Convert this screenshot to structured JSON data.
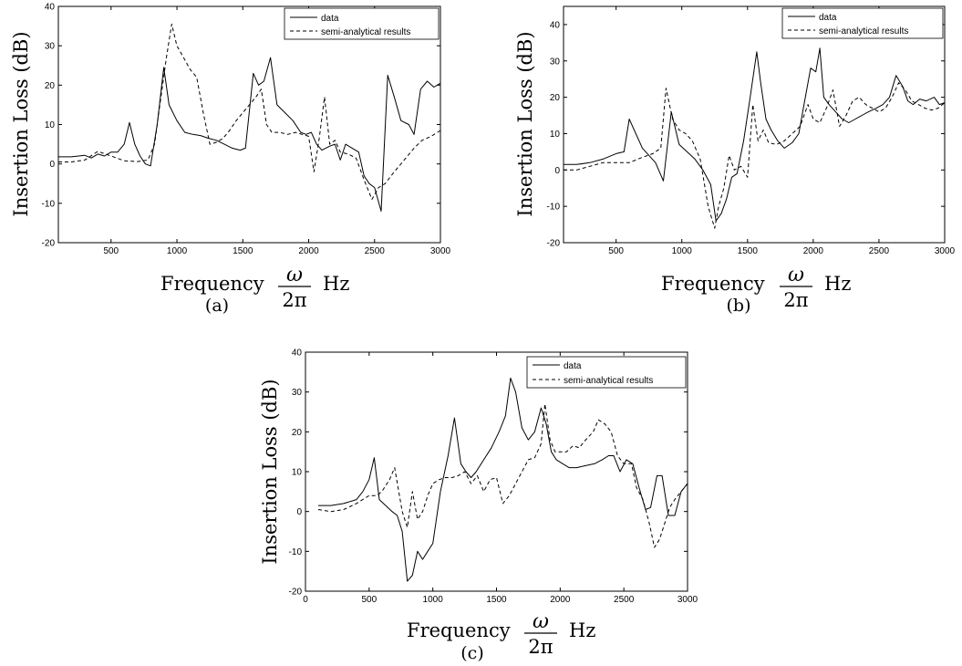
{
  "chart_data": [
    {
      "type": "line",
      "panel_label": "(a)",
      "ylabel": "Insertion Loss (dB)",
      "xlabel": {
        "prefix": "Frequency",
        "numerator": "ω",
        "denominator": "2π",
        "suffix": "Hz"
      },
      "xlim": [
        100,
        3000
      ],
      "ylim": [
        -20,
        40
      ],
      "xticks": [
        500,
        1000,
        1500,
        2000,
        2500,
        3000
      ],
      "yticks": [
        -20,
        -10,
        0,
        10,
        20,
        30,
        40
      ],
      "grid": false,
      "legend": "top-right",
      "series": [
        {
          "name": "data",
          "style": "solid",
          "x": [
            100,
            200,
            300,
            350,
            400,
            450,
            500,
            550,
            600,
            640,
            680,
            720,
            760,
            800,
            850,
            900,
            940,
            1000,
            1060,
            1120,
            1180,
            1240,
            1300,
            1360,
            1420,
            1480,
            1520,
            1580,
            1620,
            1660,
            1710,
            1760,
            1820,
            1880,
            1940,
            1980,
            2020,
            2060,
            2100,
            2160,
            2200,
            2240,
            2280,
            2330,
            2380,
            2420,
            2460,
            2500,
            2550,
            2600,
            2650,
            2700,
            2760,
            2800,
            2850,
            2900,
            2950,
            3000
          ],
          "y": [
            1.8,
            1.8,
            2.2,
            1.5,
            2.5,
            2,
            3,
            3,
            5,
            10.5,
            5,
            2,
            0,
            -0.5,
            10,
            24.5,
            15,
            11,
            8,
            7.5,
            7.2,
            6.5,
            6,
            5,
            4,
            3.5,
            4,
            23,
            20,
            21,
            27,
            15,
            13,
            11,
            8,
            7.5,
            8,
            5,
            3.5,
            4.5,
            5,
            1,
            5,
            4,
            3,
            -3,
            -5,
            -6,
            -12,
            22.5,
            17,
            11,
            10,
            7.5,
            19,
            21,
            19.5,
            20.5
          ]
        },
        {
          "name": "semi-analytical results",
          "style": "dashed",
          "x": [
            100,
            200,
            300,
            400,
            500,
            600,
            700,
            780,
            830,
            870,
            920,
            960,
            1000,
            1050,
            1100,
            1150,
            1200,
            1250,
            1300,
            1350,
            1400,
            1450,
            1500,
            1550,
            1600,
            1640,
            1680,
            1720,
            1780,
            1840,
            1900,
            1950,
            2000,
            2040,
            2080,
            2120,
            2160,
            2200,
            2240,
            2300,
            2360,
            2420,
            2480,
            2530,
            2580,
            2650,
            2700,
            2750,
            2800,
            2860,
            2930,
            3000
          ],
          "y": [
            0.5,
            0.5,
            1,
            3.2,
            2,
            0.8,
            0.6,
            1,
            5,
            15,
            27,
            35.5,
            30,
            27,
            24,
            22,
            13,
            5,
            5.5,
            6.5,
            8.5,
            11,
            13,
            15,
            17,
            19,
            10,
            8,
            8,
            7.5,
            8,
            7.5,
            7,
            -2,
            6.5,
            17,
            5,
            6,
            3,
            2.5,
            1.5,
            -4,
            -9,
            -6,
            -5,
            -2,
            0,
            2,
            4,
            6,
            7,
            8.5
          ]
        }
      ]
    },
    {
      "type": "line",
      "panel_label": "(b)",
      "ylabel": "Insertion Loss (dB)",
      "xlabel": {
        "prefix": "Frequency",
        "numerator": "ω",
        "denominator": "2π",
        "suffix": "Hz"
      },
      "xlim": [
        100,
        3000
      ],
      "ylim": [
        -20,
        45
      ],
      "xticks": [
        500,
        1000,
        1500,
        2000,
        2500,
        3000
      ],
      "yticks": [
        -20,
        -10,
        0,
        10,
        20,
        30,
        40
      ],
      "grid": false,
      "legend": "top-right",
      "series": [
        {
          "name": "data",
          "style": "solid",
          "x": [
            100,
            200,
            300,
            400,
            500,
            560,
            600,
            700,
            800,
            860,
            920,
            980,
            1040,
            1100,
            1160,
            1220,
            1260,
            1300,
            1340,
            1380,
            1420,
            1470,
            1520,
            1570,
            1600,
            1640,
            1680,
            1730,
            1780,
            1840,
            1890,
            1940,
            1980,
            2020,
            2050,
            2080,
            2120,
            2170,
            2220,
            2270,
            2320,
            2370,
            2420,
            2480,
            2530,
            2580,
            2630,
            2680,
            2720,
            2760,
            2810,
            2860,
            2920,
            2960,
            3000
          ],
          "y": [
            1.5,
            1.5,
            2,
            3,
            4.5,
            5,
            14,
            6,
            2,
            -3,
            16,
            7,
            5,
            3,
            0,
            -4,
            -14,
            -12,
            -8,
            -2,
            -1,
            8,
            20,
            32.5,
            24,
            14,
            11,
            8,
            6,
            7.5,
            10,
            20,
            28,
            27,
            33.5,
            20,
            18,
            16,
            14,
            13,
            14,
            15,
            16,
            17,
            18,
            20,
            26,
            23,
            19,
            18,
            19.5,
            19,
            20,
            18,
            18.5
          ]
        },
        {
          "name": "semi-analytical results",
          "style": "dashed",
          "x": [
            100,
            200,
            300,
            400,
            500,
            600,
            700,
            780,
            840,
            880,
            930,
            980,
            1030,
            1080,
            1140,
            1200,
            1250,
            1280,
            1320,
            1360,
            1400,
            1450,
            1500,
            1540,
            1580,
            1620,
            1660,
            1720,
            1780,
            1840,
            1900,
            1960,
            2000,
            2050,
            2100,
            2150,
            2200,
            2250,
            2300,
            2350,
            2400,
            2450,
            2500,
            2550,
            2600,
            2650,
            2700,
            2750,
            2800,
            2850,
            2900,
            2950,
            3000
          ],
          "y": [
            0,
            0,
            1,
            2,
            2,
            2,
            3.5,
            4.5,
            6,
            22.5,
            14,
            11,
            10,
            8,
            3,
            -10,
            -16,
            -10,
            -5,
            4,
            0,
            1,
            -2,
            18,
            8,
            11,
            7.5,
            7,
            8,
            10,
            12,
            18,
            14,
            13,
            17,
            22,
            12,
            15,
            19,
            20,
            18,
            17,
            16,
            17,
            20,
            24,
            22,
            19,
            18,
            17,
            16.5,
            17,
            18.5
          ]
        }
      ]
    },
    {
      "type": "line",
      "panel_label": "(c)",
      "ylabel": "Insertion Loss (dB)",
      "xlabel": {
        "prefix": "Frequency",
        "numerator": "ω",
        "denominator": "2π",
        "suffix": "Hz"
      },
      "xlim": [
        0,
        3000
      ],
      "ylim": [
        -20,
        40
      ],
      "xticks": [
        0,
        500,
        1000,
        1500,
        2000,
        2500,
        3000
      ],
      "yticks": [
        -20,
        -10,
        0,
        10,
        20,
        30,
        40
      ],
      "grid": false,
      "legend": "top-right",
      "series": [
        {
          "name": "data",
          "style": "solid",
          "x": [
            100,
            200,
            300,
            400,
            450,
            500,
            540,
            580,
            630,
            680,
            720,
            760,
            800,
            840,
            880,
            920,
            960,
            1000,
            1060,
            1120,
            1170,
            1220,
            1260,
            1300,
            1340,
            1400,
            1460,
            1520,
            1570,
            1610,
            1650,
            1700,
            1750,
            1800,
            1850,
            1890,
            1930,
            1970,
            2020,
            2070,
            2130,
            2200,
            2270,
            2330,
            2380,
            2420,
            2470,
            2520,
            2570,
            2620,
            2670,
            2710,
            2760,
            2800,
            2850,
            2900,
            2950,
            3000
          ],
          "y": [
            1.5,
            1.5,
            2,
            3,
            5,
            8,
            13.5,
            3,
            1.5,
            0,
            -1,
            -5,
            -17.5,
            -16,
            -10,
            -12,
            -10,
            -8,
            5,
            14,
            23.5,
            12,
            10,
            8.5,
            10,
            13,
            16,
            20,
            24,
            33.5,
            30,
            21,
            18,
            20,
            26,
            22,
            15,
            13,
            12,
            11,
            11,
            11.5,
            12,
            13,
            14,
            14,
            10,
            13,
            12,
            6,
            0.5,
            1,
            9,
            9,
            -1,
            -1,
            5,
            7
          ]
        },
        {
          "name": "semi-analytical results",
          "style": "dashed",
          "x": [
            100,
            200,
            300,
            400,
            500,
            560,
            600,
            660,
            700,
            760,
            800,
            840,
            880,
            920,
            960,
            1000,
            1050,
            1100,
            1150,
            1200,
            1250,
            1300,
            1350,
            1400,
            1450,
            1500,
            1550,
            1600,
            1650,
            1700,
            1750,
            1800,
            1850,
            1880,
            1920,
            1960,
            2000,
            2050,
            2100,
            2150,
            2200,
            2260,
            2300,
            2350,
            2400,
            2450,
            2500,
            2560,
            2600,
            2650,
            2700,
            2740,
            2780,
            2820,
            2860,
            2900,
            2950,
            3000
          ],
          "y": [
            0.5,
            0,
            0.5,
            2,
            4,
            4,
            5,
            8,
            11,
            0,
            -4,
            5,
            -2,
            0,
            4,
            7,
            8,
            8.5,
            8.5,
            9,
            10,
            7,
            9,
            5,
            8,
            8.5,
            2,
            4,
            7,
            10,
            13,
            13.5,
            17,
            27,
            18,
            15,
            15,
            15,
            16.5,
            16,
            18,
            20,
            23,
            22,
            20,
            14,
            12,
            12,
            6,
            3,
            -3,
            -9,
            -7,
            -3,
            1,
            3,
            5,
            7
          ]
        }
      ]
    }
  ]
}
